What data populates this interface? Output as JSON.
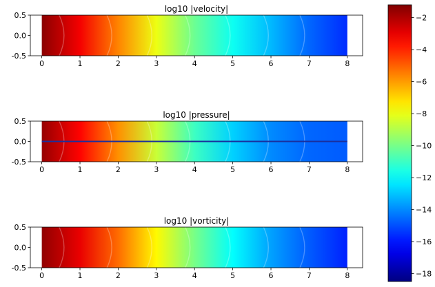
{
  "chart_data": {
    "type": "heatmap",
    "panels": [
      {
        "title": "log10 |velocity|",
        "xlim": [
          -0.3,
          8.4
        ],
        "ylim": [
          -0.5,
          0.5
        ],
        "xticks": [
          0,
          1,
          2,
          3,
          4,
          5,
          6,
          7,
          8
        ],
        "yticks": [
          0.5,
          0.0,
          -0.5
        ],
        "field_profile": [
          {
            "x": 0.0,
            "value": -1.4
          },
          {
            "x": 1.0,
            "value": -3.2
          },
          {
            "x": 2.0,
            "value": -5.6
          },
          {
            "x": 3.0,
            "value": -8.0
          },
          {
            "x": 4.0,
            "value": -10.2
          },
          {
            "x": 5.0,
            "value": -11.8
          },
          {
            "x": 6.0,
            "value": -13.2
          },
          {
            "x": 7.0,
            "value": -14.6
          },
          {
            "x": 8.0,
            "value": -15.6
          }
        ]
      },
      {
        "title": "log10 |pressure|",
        "xlim": [
          -0.3,
          8.4
        ],
        "ylim": [
          -0.5,
          0.5
        ],
        "xticks": [
          0,
          1,
          2,
          3,
          4,
          5,
          6,
          7,
          8
        ],
        "yticks": [
          0.5,
          0.0,
          -0.5
        ],
        "field_profile": [
          {
            "x": 0.0,
            "value": -1.6
          },
          {
            "x": 1.0,
            "value": -3.4
          },
          {
            "x": 2.0,
            "value": -5.8
          },
          {
            "x": 3.0,
            "value": -8.6
          },
          {
            "x": 4.0,
            "value": -11.0
          },
          {
            "x": 5.0,
            "value": -12.8
          },
          {
            "x": 6.0,
            "value": -14.0
          },
          {
            "x": 7.0,
            "value": -14.6
          },
          {
            "x": 8.0,
            "value": -14.8
          }
        ]
      },
      {
        "title": "log10 |vorticity|",
        "xlim": [
          -0.3,
          8.4
        ],
        "ylim": [
          -0.5,
          0.5
        ],
        "xticks": [
          0,
          1,
          2,
          3,
          4,
          5,
          6,
          7,
          8
        ],
        "yticks": [
          0.5,
          0.0,
          -0.5
        ],
        "field_profile": [
          {
            "x": 0.0,
            "value": -1.5
          },
          {
            "x": 1.0,
            "value": -3.0
          },
          {
            "x": 2.0,
            "value": -5.2
          },
          {
            "x": 3.0,
            "value": -7.6
          },
          {
            "x": 4.0,
            "value": -10.0
          },
          {
            "x": 5.0,
            "value": -12.0
          },
          {
            "x": 6.0,
            "value": -13.6
          },
          {
            "x": 7.0,
            "value": -14.8
          },
          {
            "x": 8.0,
            "value": -15.8
          }
        ]
      }
    ],
    "colorbar": {
      "colormap": "jet",
      "range": [
        -18.5,
        -1.2
      ],
      "ticks": [
        -2,
        -4,
        -6,
        -8,
        -10,
        -12,
        -14,
        -16,
        -18
      ]
    }
  }
}
